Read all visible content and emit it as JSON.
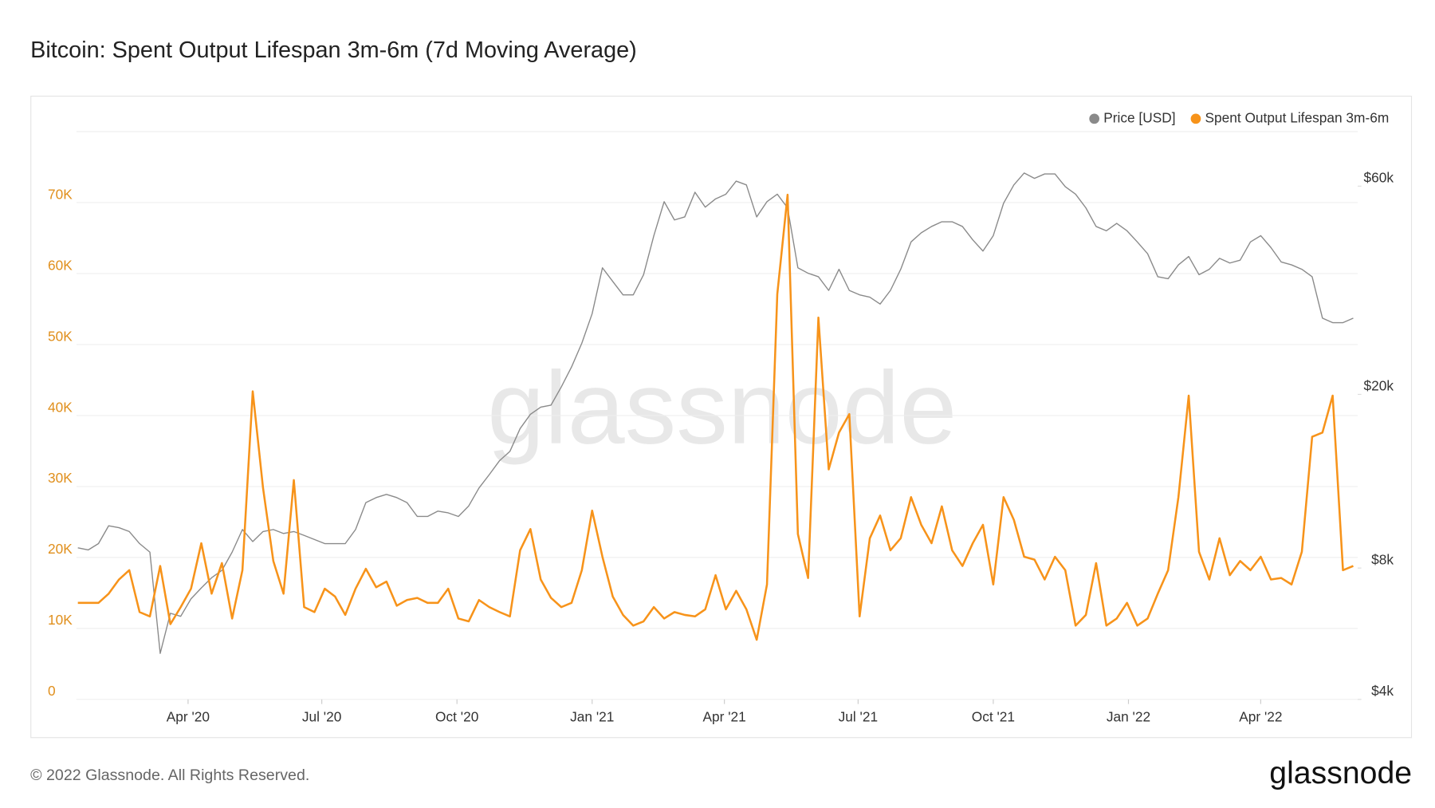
{
  "chart_data": {
    "type": "line",
    "title": "Bitcoin: Spent Output Lifespan 3m-6m (7d Moving Average)",
    "watermark": "glassnode",
    "footer": "© 2022 Glassnode. All Rights Reserved.",
    "logo": "glassnode",
    "legend_position": "top-right",
    "grid": true,
    "xlim": [
      "2020-01-16",
      "2022-06-06"
    ],
    "xticks": [
      {
        "value": "2020-04-01",
        "label": "Apr '20"
      },
      {
        "value": "2020-07-01",
        "label": "Jul '20"
      },
      {
        "value": "2020-10-01",
        "label": "Oct '20"
      },
      {
        "value": "2021-01-01",
        "label": "Jan '21"
      },
      {
        "value": "2021-04-01",
        "label": "Apr '21"
      },
      {
        "value": "2021-07-01",
        "label": "Jul '21"
      },
      {
        "value": "2021-10-01",
        "label": "Oct '21"
      },
      {
        "value": "2022-01-01",
        "label": "Jan '22"
      },
      {
        "value": "2022-04-01",
        "label": "Apr '22"
      }
    ],
    "ylim": [
      0,
      80000
    ],
    "yticks": [
      0,
      {
        "value": 10000,
        "label": "10K"
      },
      {
        "value": 20000,
        "label": "20K"
      },
      {
        "value": 30000,
        "label": "30K"
      },
      {
        "value": 40000,
        "label": "40K"
      },
      {
        "value": 50000,
        "label": "50K"
      },
      {
        "value": 60000,
        "label": "60K"
      },
      {
        "value": 70000,
        "label": "70K"
      }
    ],
    "y2lim": [
      4000,
      80000
    ],
    "y2scale": "log",
    "y2ticks": [
      {
        "value": 4000,
        "label": "$4k"
      },
      {
        "value": 8000,
        "label": "$8k"
      },
      {
        "value": 20000,
        "label": "$20k"
      },
      {
        "value": 60000,
        "label": "$60k"
      }
    ],
    "x": [
      "2020-01-17",
      "2020-01-24",
      "2020-01-31",
      "2020-02-07",
      "2020-02-14",
      "2020-02-21",
      "2020-02-28",
      "2020-03-06",
      "2020-03-13",
      "2020-03-20",
      "2020-03-27",
      "2020-04-03",
      "2020-04-10",
      "2020-04-17",
      "2020-04-24",
      "2020-05-01",
      "2020-05-08",
      "2020-05-15",
      "2020-05-22",
      "2020-05-29",
      "2020-06-05",
      "2020-06-12",
      "2020-06-19",
      "2020-06-26",
      "2020-07-03",
      "2020-07-10",
      "2020-07-17",
      "2020-07-24",
      "2020-07-31",
      "2020-08-07",
      "2020-08-14",
      "2020-08-21",
      "2020-08-28",
      "2020-09-04",
      "2020-09-11",
      "2020-09-18",
      "2020-09-25",
      "2020-10-02",
      "2020-10-09",
      "2020-10-16",
      "2020-10-23",
      "2020-10-30",
      "2020-11-06",
      "2020-11-13",
      "2020-11-20",
      "2020-11-27",
      "2020-12-04",
      "2020-12-11",
      "2020-12-18",
      "2020-12-25",
      "2021-01-01",
      "2021-01-08",
      "2021-01-15",
      "2021-01-22",
      "2021-01-29",
      "2021-02-05",
      "2021-02-12",
      "2021-02-19",
      "2021-02-26",
      "2021-03-05",
      "2021-03-12",
      "2021-03-19",
      "2021-03-26",
      "2021-04-02",
      "2021-04-09",
      "2021-04-16",
      "2021-04-23",
      "2021-04-30",
      "2021-05-07",
      "2021-05-14",
      "2021-05-21",
      "2021-05-28",
      "2021-06-04",
      "2021-06-11",
      "2021-06-18",
      "2021-06-25",
      "2021-07-02",
      "2021-07-09",
      "2021-07-16",
      "2021-07-23",
      "2021-07-30",
      "2021-08-06",
      "2021-08-13",
      "2021-08-20",
      "2021-08-27",
      "2021-09-03",
      "2021-09-10",
      "2021-09-17",
      "2021-09-24",
      "2021-10-01",
      "2021-10-08",
      "2021-10-15",
      "2021-10-22",
      "2021-10-29",
      "2021-11-05",
      "2021-11-12",
      "2021-11-19",
      "2021-11-26",
      "2021-12-03",
      "2021-12-10",
      "2021-12-17",
      "2021-12-24",
      "2021-12-31",
      "2022-01-07",
      "2022-01-14",
      "2022-01-21",
      "2022-01-28",
      "2022-02-04",
      "2022-02-11",
      "2022-02-18",
      "2022-02-25",
      "2022-03-04",
      "2022-03-11",
      "2022-03-18",
      "2022-03-25",
      "2022-04-01",
      "2022-04-08",
      "2022-04-15",
      "2022-04-22",
      "2022-04-29",
      "2022-05-06",
      "2022-05-13",
      "2022-05-20",
      "2022-05-27",
      "2022-06-03"
    ],
    "series": [
      {
        "name": "Price [USD]",
        "color": "#8a8a8a",
        "axis": "y2",
        "values": [
          8900,
          8800,
          9100,
          10000,
          9900,
          9700,
          9100,
          8700,
          5100,
          6300,
          6200,
          6800,
          7200,
          7600,
          7900,
          8700,
          9800,
          9200,
          9700,
          9800,
          9600,
          9700,
          9500,
          9300,
          9100,
          9100,
          9100,
          9800,
          11300,
          11600,
          11800,
          11600,
          11300,
          10500,
          10500,
          10800,
          10700,
          10500,
          11100,
          12200,
          13100,
          14100,
          14800,
          16700,
          18000,
          18700,
          18900,
          20800,
          23100,
          26200,
          30600,
          39000,
          36300,
          33800,
          33800,
          37600,
          46200,
          55300,
          50200,
          51000,
          58100,
          53700,
          56100,
          57500,
          61600,
          60400,
          51000,
          55300,
          57500,
          53500,
          39000,
          37900,
          37200,
          34600,
          38700,
          34600,
          33800,
          33400,
          32200,
          34600,
          38700,
          44700,
          46900,
          48500,
          49700,
          49700,
          48500,
          45200,
          42600,
          46200,
          54800,
          60400,
          64300,
          62500,
          64000,
          64000,
          59800,
          57500,
          53500,
          48500,
          47400,
          49300,
          47400,
          44700,
          42000,
          37200,
          36800,
          39600,
          41400,
          37600,
          38700,
          41000,
          40000,
          40600,
          44700,
          46200,
          43400,
          40200,
          39600,
          38700,
          37200,
          29900,
          29200,
          29200,
          29900
        ]
      },
      {
        "name": "Spent Output Lifespan 3m-6m",
        "color": "#f7931a",
        "values": [
          13600,
          13600,
          13600,
          14900,
          16900,
          18200,
          12300,
          11700,
          18800,
          10600,
          13000,
          15600,
          22000,
          14900,
          19200,
          11400,
          18200,
          43400,
          29800,
          19500,
          14900,
          30900,
          13000,
          12300,
          15600,
          14500,
          11900,
          15600,
          18400,
          15800,
          16600,
          13200,
          14000,
          14300,
          13600,
          13600,
          15600,
          11400,
          11000,
          14000,
          13000,
          12300,
          11700,
          21000,
          24000,
          16900,
          14300,
          13000,
          13600,
          18200,
          26600,
          20100,
          14500,
          11900,
          10400,
          11000,
          13000,
          11400,
          12300,
          11900,
          11700,
          12700,
          17500,
          12700,
          15300,
          12700,
          8400,
          16200,
          57100,
          71100,
          23300,
          17100,
          53800,
          32400,
          37600,
          40200,
          11700,
          22700,
          25900,
          21000,
          22700,
          28500,
          24600,
          22000,
          27200,
          21000,
          18800,
          22000,
          24600,
          16200,
          28500,
          25300,
          20100,
          19700,
          16900,
          20100,
          18200,
          10400,
          11900,
          19200,
          10400,
          11400,
          13600,
          10400,
          11400,
          14900,
          18200,
          28500,
          42800,
          20800,
          16900,
          22700,
          17500,
          19500,
          18200,
          20100,
          16900,
          17100,
          16200,
          20800,
          37000,
          37600,
          42800,
          18200,
          18800
        ]
      }
    ]
  }
}
